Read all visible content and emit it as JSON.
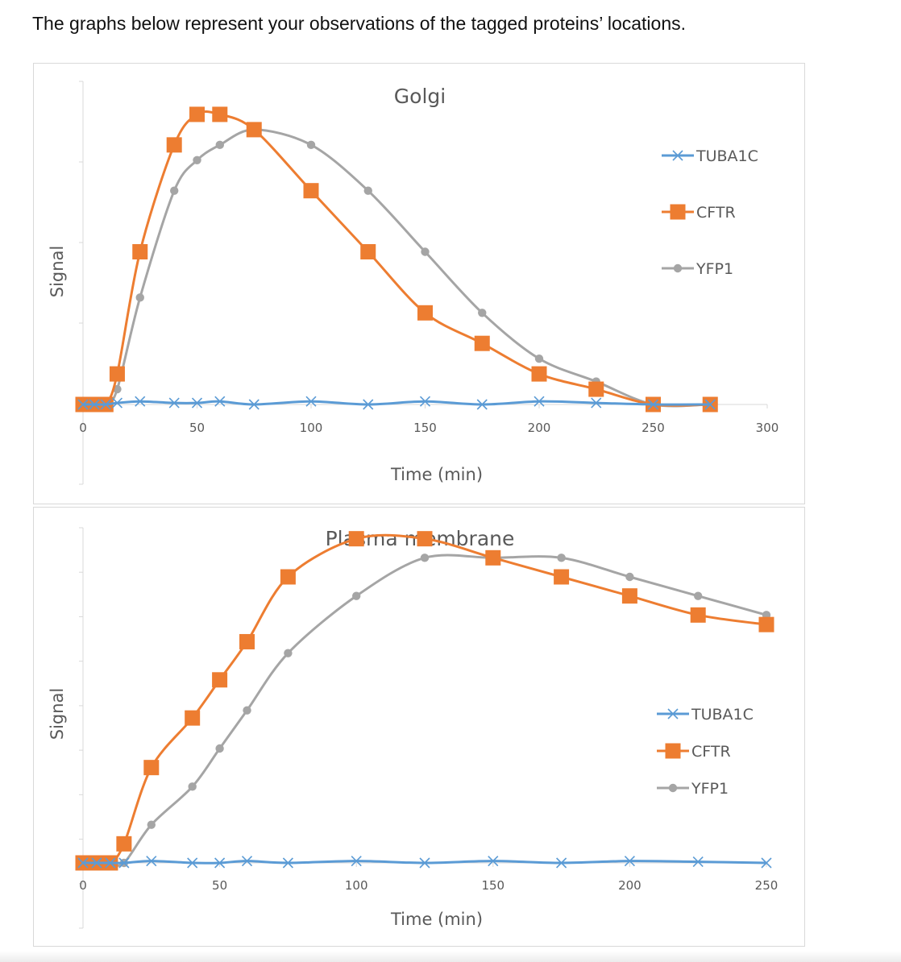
{
  "heading": "The graphs below represent your observations of the tagged proteins’ locations.",
  "colors": {
    "TUBA1C": "#5b9bd5",
    "CFTR": "#ed7d31",
    "YFP1": "#a5a5a5"
  },
  "chart_data": [
    {
      "type": "line",
      "title": "Golgi",
      "xlabel": "Time (min)",
      "ylabel": "Signal",
      "xlim": [
        0,
        300
      ],
      "xticks": [
        0,
        50,
        100,
        150,
        200,
        250,
        300
      ],
      "ylim": [
        0,
        10
      ],
      "grid": false,
      "legend": "right",
      "series": [
        {
          "name": "TUBA1C",
          "marker": "x",
          "points": [
            [
              0,
              0
            ],
            [
              5,
              0
            ],
            [
              10,
              0
            ],
            [
              15,
              0.05
            ],
            [
              25,
              0.1
            ],
            [
              40,
              0.05
            ],
            [
              50,
              0.05
            ],
            [
              60,
              0.1
            ],
            [
              75,
              0
            ],
            [
              100,
              0.1
            ],
            [
              125,
              0
            ],
            [
              150,
              0.1
            ],
            [
              175,
              0
            ],
            [
              200,
              0.1
            ],
            [
              225,
              0.05
            ],
            [
              250,
              0
            ],
            [
              275,
              0
            ]
          ]
        },
        {
          "name": "CFTR",
          "marker": "square",
          "points": [
            [
              0,
              0
            ],
            [
              5,
              0
            ],
            [
              10,
              0
            ],
            [
              15,
              1
            ],
            [
              25,
              5
            ],
            [
              40,
              8.5
            ],
            [
              50,
              9.5
            ],
            [
              60,
              9.5
            ],
            [
              75,
              9
            ],
            [
              100,
              7
            ],
            [
              125,
              5
            ],
            [
              150,
              3
            ],
            [
              175,
              2
            ],
            [
              200,
              1
            ],
            [
              225,
              0.5
            ],
            [
              250,
              0
            ],
            [
              275,
              0
            ]
          ]
        },
        {
          "name": "YFP1",
          "marker": "circle",
          "points": [
            [
              0,
              0
            ],
            [
              5,
              0
            ],
            [
              10,
              0
            ],
            [
              15,
              0.5
            ],
            [
              25,
              3.5
            ],
            [
              40,
              7
            ],
            [
              50,
              8
            ],
            [
              60,
              8.5
            ],
            [
              75,
              9
            ],
            [
              100,
              8.5
            ],
            [
              125,
              7
            ],
            [
              150,
              5
            ],
            [
              175,
              3
            ],
            [
              200,
              1.5
            ],
            [
              225,
              0.75
            ],
            [
              250,
              0
            ],
            [
              275,
              0
            ]
          ]
        }
      ]
    },
    {
      "type": "line",
      "title": "Plasma membrane",
      "xlabel": "Time (min)",
      "ylabel": "Signal",
      "xlim": [
        0,
        250
      ],
      "xticks": [
        0,
        50,
        100,
        150,
        200,
        250
      ],
      "ylim": [
        0,
        9
      ],
      "grid": false,
      "legend": "right",
      "series": [
        {
          "name": "TUBA1C",
          "marker": "x",
          "points": [
            [
              0,
              0
            ],
            [
              5,
              0
            ],
            [
              10,
              0
            ],
            [
              15,
              0
            ],
            [
              25,
              0.05
            ],
            [
              40,
              0
            ],
            [
              50,
              0
            ],
            [
              60,
              0.05
            ],
            [
              75,
              0
            ],
            [
              100,
              0.05
            ],
            [
              125,
              0
            ],
            [
              150,
              0.05
            ],
            [
              175,
              0
            ],
            [
              200,
              0.05
            ],
            [
              225,
              0.03
            ],
            [
              250,
              0
            ]
          ]
        },
        {
          "name": "CFTR",
          "marker": "square",
          "points": [
            [
              0,
              0
            ],
            [
              5,
              0
            ],
            [
              10,
              0
            ],
            [
              15,
              0.5
            ],
            [
              25,
              2.5
            ],
            [
              40,
              3.8
            ],
            [
              50,
              4.8
            ],
            [
              60,
              5.8
            ],
            [
              75,
              7.5
            ],
            [
              100,
              8.5
            ],
            [
              125,
              8.5
            ],
            [
              150,
              8
            ],
            [
              175,
              7.5
            ],
            [
              200,
              7
            ],
            [
              225,
              6.5
            ],
            [
              250,
              6.25
            ]
          ]
        },
        {
          "name": "YFP1",
          "marker": "circle",
          "points": [
            [
              0,
              0
            ],
            [
              5,
              0
            ],
            [
              10,
              0
            ],
            [
              15,
              0
            ],
            [
              25,
              1
            ],
            [
              40,
              2
            ],
            [
              50,
              3
            ],
            [
              60,
              4
            ],
            [
              75,
              5.5
            ],
            [
              100,
              7
            ],
            [
              125,
              8
            ],
            [
              150,
              8
            ],
            [
              175,
              8
            ],
            [
              200,
              7.5
            ],
            [
              225,
              7
            ],
            [
              250,
              6.5
            ]
          ]
        }
      ]
    }
  ]
}
